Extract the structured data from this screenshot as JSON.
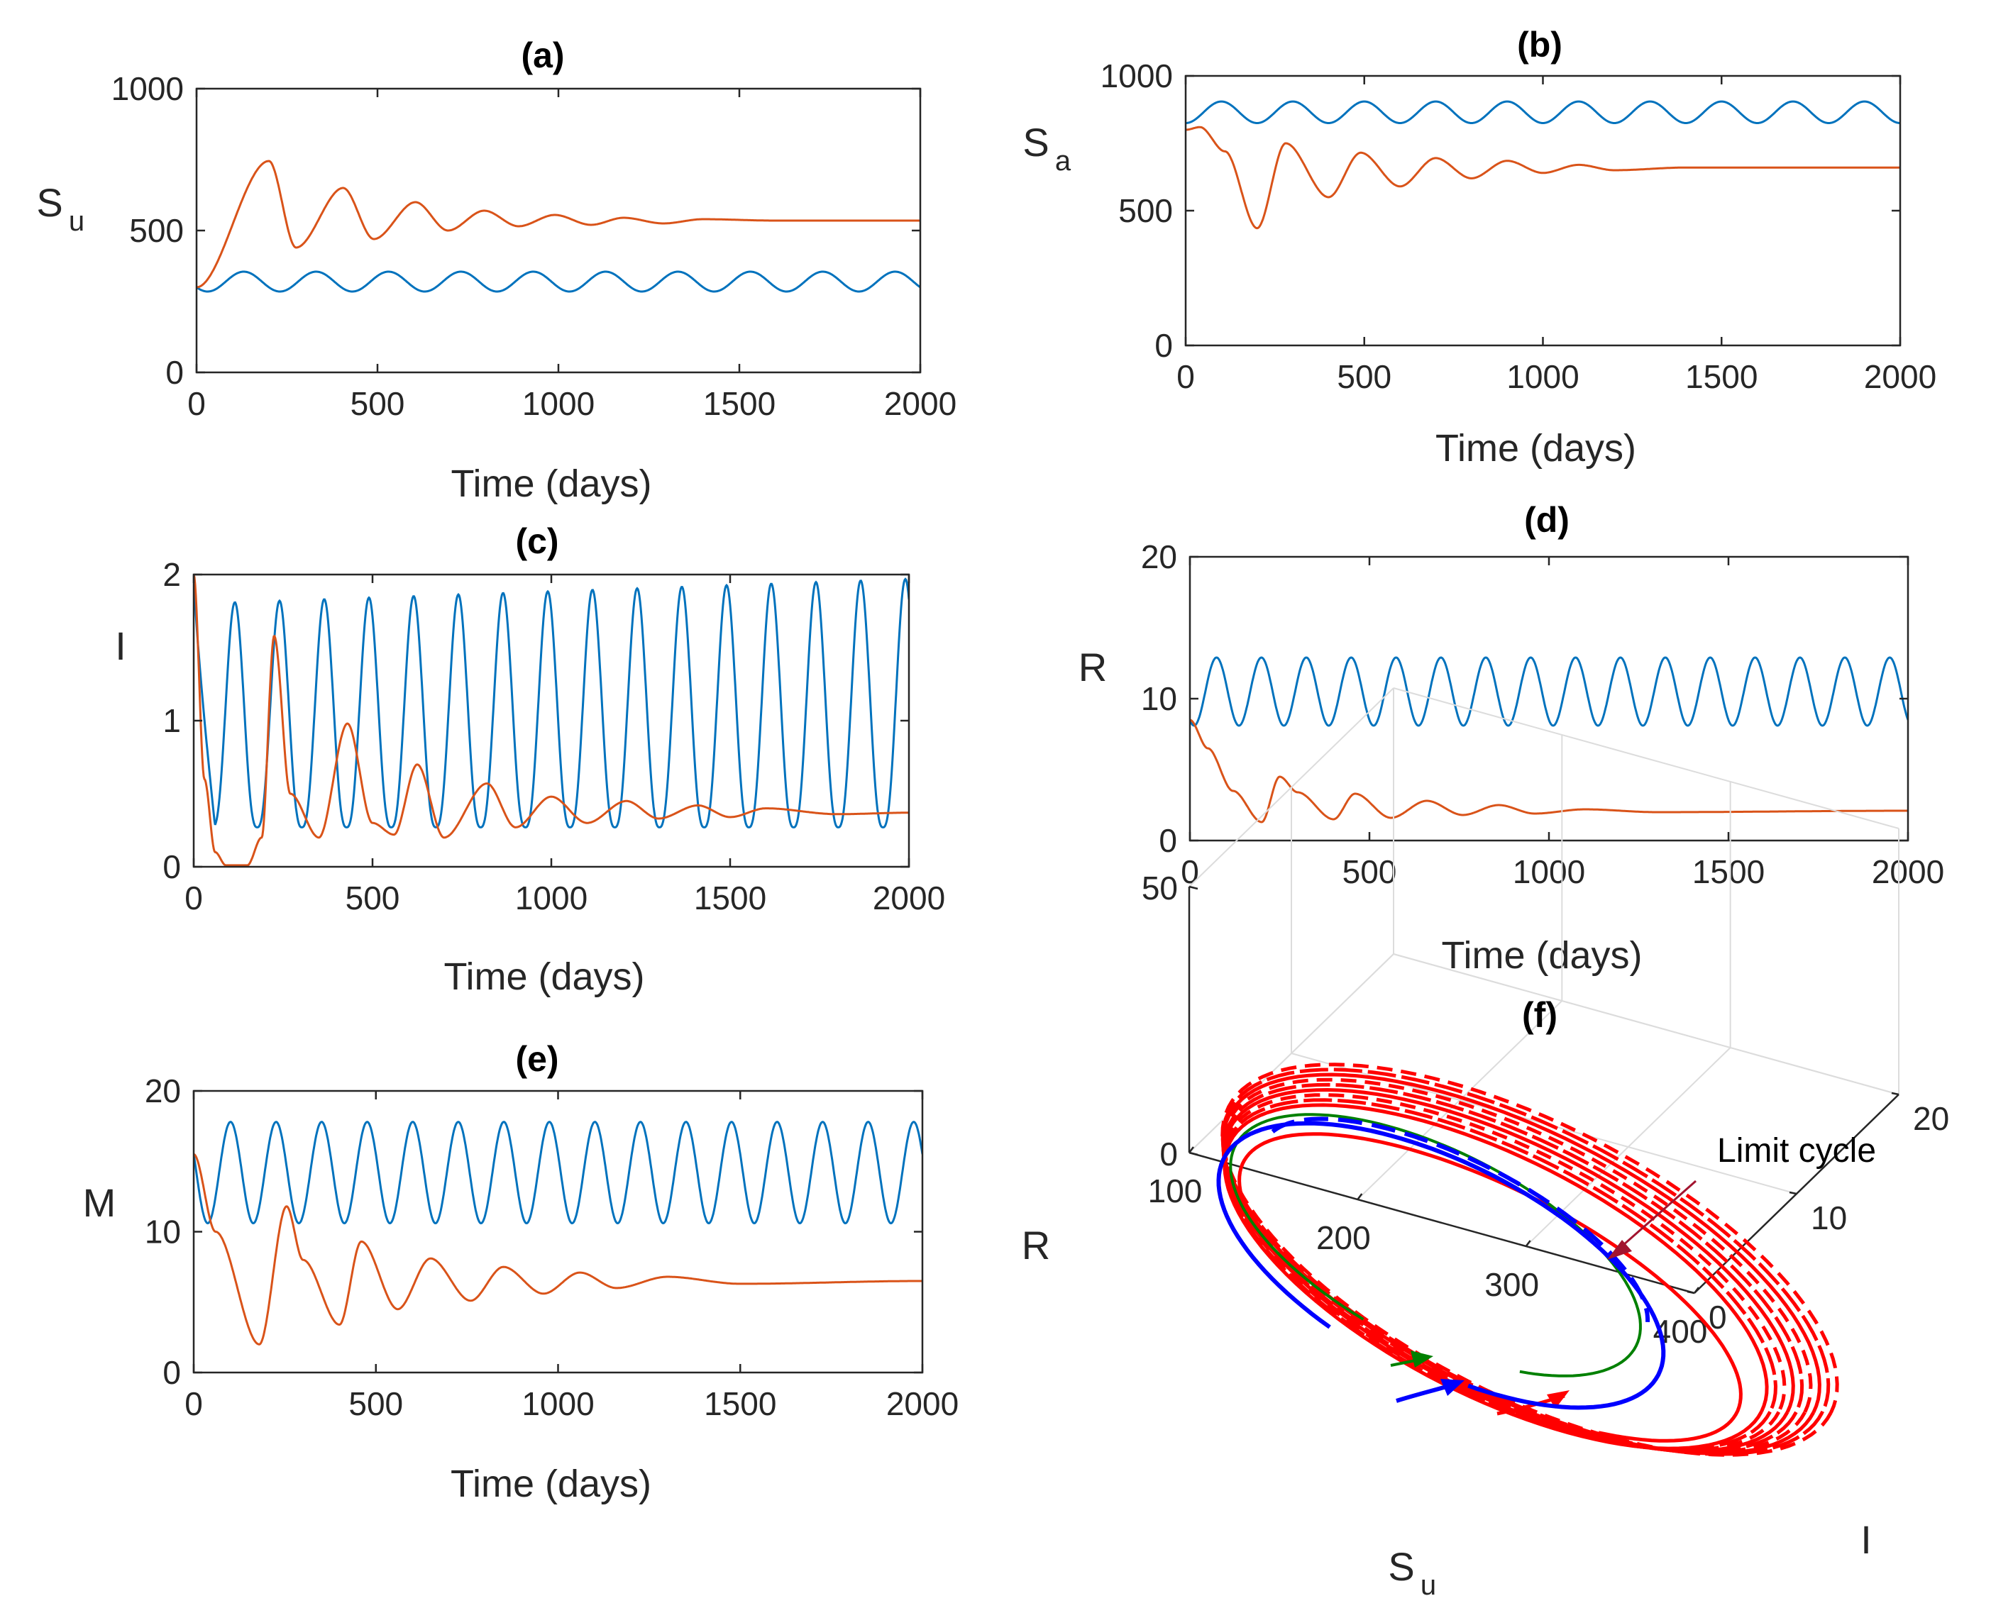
{
  "colors": {
    "blue": "#0072BD",
    "orange": "#D95319",
    "red": "#FF0000",
    "green": "#008000",
    "darkblue": "#0000FF",
    "arrow": "#A2142F"
  },
  "chart_data": [
    {
      "id": "a",
      "type": "line",
      "title": "(a)",
      "xlabel": "Time (days)",
      "ylabel": {
        "main": "S",
        "sub": "u"
      },
      "xlim": [
        0,
        2000
      ],
      "ylim": [
        0,
        1000
      ],
      "xticks": [
        0,
        500,
        1000,
        1500,
        2000
      ],
      "yticks": [
        0,
        500,
        1000
      ],
      "series": [
        {
          "name": "blue",
          "color": "#0072BD",
          "kind": "periodic",
          "start": 300,
          "mean": 320,
          "amp": 35,
          "period": 200
        },
        {
          "name": "orange",
          "color": "#D95319",
          "kind": "damped",
          "start": 300,
          "points": [
            [
              0,
              300
            ],
            [
              200,
              745
            ],
            [
              275,
              440
            ],
            [
              405,
              650
            ],
            [
              490,
              470
            ],
            [
              605,
              600
            ],
            [
              695,
              500
            ],
            [
              795,
              570
            ],
            [
              890,
              515
            ],
            [
              990,
              555
            ],
            [
              1090,
              520
            ],
            [
              1180,
              545
            ],
            [
              1290,
              525
            ],
            [
              1400,
              540
            ],
            [
              1600,
              535
            ],
            [
              2000,
              535
            ]
          ]
        }
      ]
    },
    {
      "id": "b",
      "type": "line",
      "title": "(b)",
      "xlabel": "Time (days)",
      "ylabel": {
        "main": "S",
        "sub": "a"
      },
      "xlim": [
        0,
        2000
      ],
      "ylim": [
        0,
        1000
      ],
      "xticks": [
        0,
        500,
        1000,
        1500,
        2000
      ],
      "yticks": [
        0,
        500,
        1000
      ],
      "series": [
        {
          "name": "blue",
          "color": "#0072BD",
          "kind": "periodic",
          "start": 800,
          "mean": 865,
          "amp": 40,
          "period": 200
        },
        {
          "name": "orange",
          "color": "#D95319",
          "kind": "damped",
          "start": 800,
          "points": [
            [
              0,
              800
            ],
            [
              40,
              810
            ],
            [
              110,
              720
            ],
            [
              200,
              435
            ],
            [
              280,
              750
            ],
            [
              400,
              550
            ],
            [
              490,
              715
            ],
            [
              600,
              590
            ],
            [
              700,
              695
            ],
            [
              800,
              620
            ],
            [
              900,
              685
            ],
            [
              1000,
              640
            ],
            [
              1100,
              670
            ],
            [
              1200,
              650
            ],
            [
              1400,
              660
            ],
            [
              2000,
              660
            ]
          ]
        }
      ]
    },
    {
      "id": "c",
      "type": "line",
      "title": "(c)",
      "xlabel": "Time (days)",
      "ylabel": {
        "main": "I",
        "sub": ""
      },
      "xlim": [
        0,
        2000
      ],
      "ylim": [
        0,
        2
      ],
      "xticks": [
        0,
        500,
        1000,
        1500,
        2000
      ],
      "yticks": [
        0,
        1,
        2
      ],
      "series": [
        {
          "name": "blue",
          "color": "#0072BD",
          "kind": "spiky",
          "start": 2,
          "min": 0.27,
          "max0": 1.8,
          "max1": 1.97,
          "period": 125,
          "phase": 115
        },
        {
          "name": "orange",
          "color": "#D95319",
          "kind": "damped",
          "start": 2,
          "points": [
            [
              0,
              2
            ],
            [
              30,
              0.6
            ],
            [
              60,
              0.1
            ],
            [
              90,
              0.01
            ],
            [
              150,
              0.01
            ],
            [
              190,
              0.2
            ],
            [
              225,
              1.58
            ],
            [
              270,
              0.5
            ],
            [
              350,
              0.2
            ],
            [
              430,
              0.98
            ],
            [
              500,
              0.3
            ],
            [
              560,
              0.22
            ],
            [
              625,
              0.7
            ],
            [
              700,
              0.2
            ],
            [
              820,
              0.57
            ],
            [
              900,
              0.27
            ],
            [
              1000,
              0.48
            ],
            [
              1100,
              0.3
            ],
            [
              1210,
              0.45
            ],
            [
              1300,
              0.33
            ],
            [
              1410,
              0.42
            ],
            [
              1500,
              0.34
            ],
            [
              1600,
              0.4
            ],
            [
              1800,
              0.36
            ],
            [
              2000,
              0.37
            ]
          ]
        }
      ]
    },
    {
      "id": "d",
      "type": "line",
      "title": "(d)",
      "xlabel": "Time (days)",
      "ylabel": {
        "main": "R",
        "sub": ""
      },
      "xlim": [
        0,
        2000
      ],
      "ylim": [
        0,
        20
      ],
      "xticks": [
        0,
        500,
        1000,
        1500,
        2000
      ],
      "yticks": [
        0,
        10,
        20
      ],
      "series": [
        {
          "name": "blue",
          "color": "#0072BD",
          "kind": "periodic",
          "start": 8.5,
          "mean": 10.5,
          "amp": 2.4,
          "period": 125
        },
        {
          "name": "orange",
          "color": "#D95319",
          "kind": "damped",
          "start": 8.5,
          "points": [
            [
              0,
              8.5
            ],
            [
              50,
              6.5
            ],
            [
              120,
              3.5
            ],
            [
              200,
              1.3
            ],
            [
              250,
              4.5
            ],
            [
              300,
              3.4
            ],
            [
              400,
              1.5
            ],
            [
              460,
              3.3
            ],
            [
              560,
              1.6
            ],
            [
              660,
              2.8
            ],
            [
              760,
              1.8
            ],
            [
              860,
              2.5
            ],
            [
              960,
              1.9
            ],
            [
              1100,
              2.2
            ],
            [
              1300,
              2.0
            ],
            [
              2000,
              2.1
            ]
          ]
        }
      ]
    },
    {
      "id": "e",
      "type": "line",
      "title": "(e)",
      "xlabel": "Time (days)",
      "ylabel": {
        "main": "M",
        "sub": ""
      },
      "xlim": [
        0,
        2000
      ],
      "ylim": [
        0,
        20
      ],
      "xticks": [
        0,
        500,
        1000,
        1500,
        2000
      ],
      "yticks": [
        0,
        10,
        20
      ],
      "series": [
        {
          "name": "blue",
          "color": "#0072BD",
          "kind": "periodic",
          "start": 15.5,
          "mean": 14.2,
          "amp": 3.6,
          "period": 125
        },
        {
          "name": "orange",
          "color": "#D95319",
          "kind": "damped",
          "start": 15.5,
          "points": [
            [
              0,
              15.5
            ],
            [
              60,
              10
            ],
            [
              180,
              2.0
            ],
            [
              255,
              11.8
            ],
            [
              300,
              8
            ],
            [
              400,
              3.4
            ],
            [
              460,
              9.3
            ],
            [
              560,
              4.5
            ],
            [
              650,
              8.1
            ],
            [
              760,
              5.1
            ],
            [
              850,
              7.5
            ],
            [
              960,
              5.6
            ],
            [
              1060,
              7.1
            ],
            [
              1160,
              6.0
            ],
            [
              1300,
              6.8
            ],
            [
              1500,
              6.3
            ],
            [
              2000,
              6.5
            ]
          ]
        }
      ]
    },
    {
      "id": "f",
      "type": "line3d",
      "title": "(f)",
      "xlabel": {
        "main": "S",
        "sub": "u"
      },
      "ylabel": "I",
      "zlabel": "R",
      "xlim": [
        100,
        400
      ],
      "ylim": [
        0,
        20
      ],
      "zlim": [
        0,
        50
      ],
      "xticks": [
        100,
        200,
        300,
        400
      ],
      "yticks": [
        0,
        10,
        20
      ],
      "zticks": [
        0,
        50
      ],
      "annotation": "Limit cycle",
      "series": [
        {
          "name": "red trajectories",
          "color": "#FF0000"
        },
        {
          "name": "green trajectory",
          "color": "#008000"
        },
        {
          "name": "blue trajectory",
          "color": "#0000FF"
        }
      ]
    }
  ]
}
